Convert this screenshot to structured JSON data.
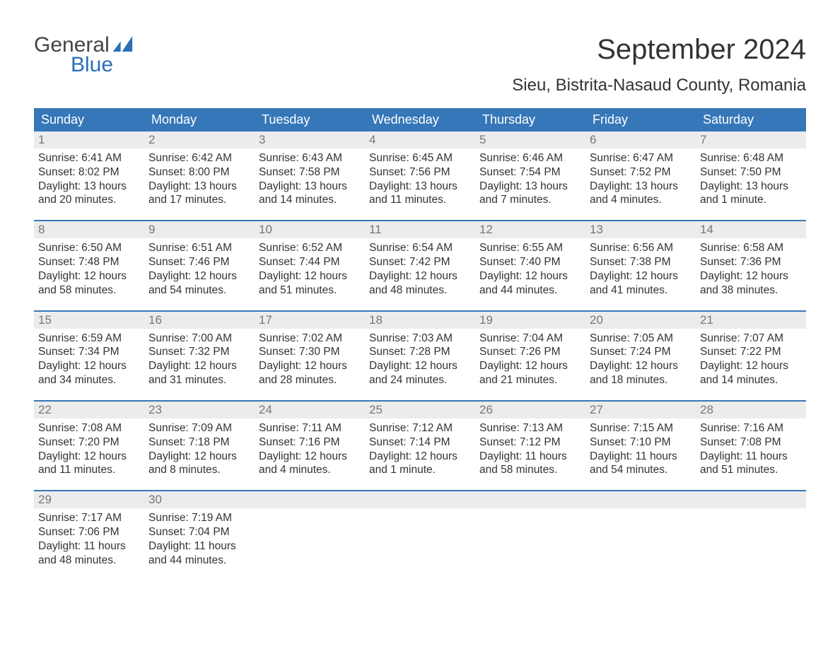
{
  "brand": {
    "top": "General",
    "bottom": "Blue",
    "icon_color": "#2c6fb5",
    "text_color_top": "#444444",
    "text_color_bottom": "#2c6fb5"
  },
  "title": "September 2024",
  "location": "Sieu, Bistrita-Nasaud County, Romania",
  "colors": {
    "header_bg": "#3577b8",
    "header_text": "#ffffff",
    "daynum_bg": "#ececec",
    "daynum_text": "#777777",
    "week_divider": "#3577b8",
    "body_text": "#333333",
    "page_bg": "#ffffff"
  },
  "fonts": {
    "title_size_pt": 30,
    "location_size_pt": 18,
    "dayheader_size_pt": 14,
    "daynum_size_pt": 13,
    "body_size_pt": 12
  },
  "day_headers": [
    "Sunday",
    "Monday",
    "Tuesday",
    "Wednesday",
    "Thursday",
    "Friday",
    "Saturday"
  ],
  "weeks": [
    [
      {
        "n": "1",
        "sunrise": "6:41 AM",
        "sunset": "8:02 PM",
        "daylight": "13 hours and 20 minutes."
      },
      {
        "n": "2",
        "sunrise": "6:42 AM",
        "sunset": "8:00 PM",
        "daylight": "13 hours and 17 minutes."
      },
      {
        "n": "3",
        "sunrise": "6:43 AM",
        "sunset": "7:58 PM",
        "daylight": "13 hours and 14 minutes."
      },
      {
        "n": "4",
        "sunrise": "6:45 AM",
        "sunset": "7:56 PM",
        "daylight": "13 hours and 11 minutes."
      },
      {
        "n": "5",
        "sunrise": "6:46 AM",
        "sunset": "7:54 PM",
        "daylight": "13 hours and 7 minutes."
      },
      {
        "n": "6",
        "sunrise": "6:47 AM",
        "sunset": "7:52 PM",
        "daylight": "13 hours and 4 minutes."
      },
      {
        "n": "7",
        "sunrise": "6:48 AM",
        "sunset": "7:50 PM",
        "daylight": "13 hours and 1 minute."
      }
    ],
    [
      {
        "n": "8",
        "sunrise": "6:50 AM",
        "sunset": "7:48 PM",
        "daylight": "12 hours and 58 minutes."
      },
      {
        "n": "9",
        "sunrise": "6:51 AM",
        "sunset": "7:46 PM",
        "daylight": "12 hours and 54 minutes."
      },
      {
        "n": "10",
        "sunrise": "6:52 AM",
        "sunset": "7:44 PM",
        "daylight": "12 hours and 51 minutes."
      },
      {
        "n": "11",
        "sunrise": "6:54 AM",
        "sunset": "7:42 PM",
        "daylight": "12 hours and 48 minutes."
      },
      {
        "n": "12",
        "sunrise": "6:55 AM",
        "sunset": "7:40 PM",
        "daylight": "12 hours and 44 minutes."
      },
      {
        "n": "13",
        "sunrise": "6:56 AM",
        "sunset": "7:38 PM",
        "daylight": "12 hours and 41 minutes."
      },
      {
        "n": "14",
        "sunrise": "6:58 AM",
        "sunset": "7:36 PM",
        "daylight": "12 hours and 38 minutes."
      }
    ],
    [
      {
        "n": "15",
        "sunrise": "6:59 AM",
        "sunset": "7:34 PM",
        "daylight": "12 hours and 34 minutes."
      },
      {
        "n": "16",
        "sunrise": "7:00 AM",
        "sunset": "7:32 PM",
        "daylight": "12 hours and 31 minutes."
      },
      {
        "n": "17",
        "sunrise": "7:02 AM",
        "sunset": "7:30 PM",
        "daylight": "12 hours and 28 minutes."
      },
      {
        "n": "18",
        "sunrise": "7:03 AM",
        "sunset": "7:28 PM",
        "daylight": "12 hours and 24 minutes."
      },
      {
        "n": "19",
        "sunrise": "7:04 AM",
        "sunset": "7:26 PM",
        "daylight": "12 hours and 21 minutes."
      },
      {
        "n": "20",
        "sunrise": "7:05 AM",
        "sunset": "7:24 PM",
        "daylight": "12 hours and 18 minutes."
      },
      {
        "n": "21",
        "sunrise": "7:07 AM",
        "sunset": "7:22 PM",
        "daylight": "12 hours and 14 minutes."
      }
    ],
    [
      {
        "n": "22",
        "sunrise": "7:08 AM",
        "sunset": "7:20 PM",
        "daylight": "12 hours and 11 minutes."
      },
      {
        "n": "23",
        "sunrise": "7:09 AM",
        "sunset": "7:18 PM",
        "daylight": "12 hours and 8 minutes."
      },
      {
        "n": "24",
        "sunrise": "7:11 AM",
        "sunset": "7:16 PM",
        "daylight": "12 hours and 4 minutes."
      },
      {
        "n": "25",
        "sunrise": "7:12 AM",
        "sunset": "7:14 PM",
        "daylight": "12 hours and 1 minute."
      },
      {
        "n": "26",
        "sunrise": "7:13 AM",
        "sunset": "7:12 PM",
        "daylight": "11 hours and 58 minutes."
      },
      {
        "n": "27",
        "sunrise": "7:15 AM",
        "sunset": "7:10 PM",
        "daylight": "11 hours and 54 minutes."
      },
      {
        "n": "28",
        "sunrise": "7:16 AM",
        "sunset": "7:08 PM",
        "daylight": "11 hours and 51 minutes."
      }
    ],
    [
      {
        "n": "29",
        "sunrise": "7:17 AM",
        "sunset": "7:06 PM",
        "daylight": "11 hours and 48 minutes."
      },
      {
        "n": "30",
        "sunrise": "7:19 AM",
        "sunset": "7:04 PM",
        "daylight": "11 hours and 44 minutes."
      },
      {
        "empty": true
      },
      {
        "empty": true
      },
      {
        "empty": true
      },
      {
        "empty": true
      },
      {
        "empty": true
      }
    ]
  ],
  "labels": {
    "sunrise_prefix": "Sunrise: ",
    "sunset_prefix": "Sunset: ",
    "daylight_prefix": "Daylight: "
  }
}
